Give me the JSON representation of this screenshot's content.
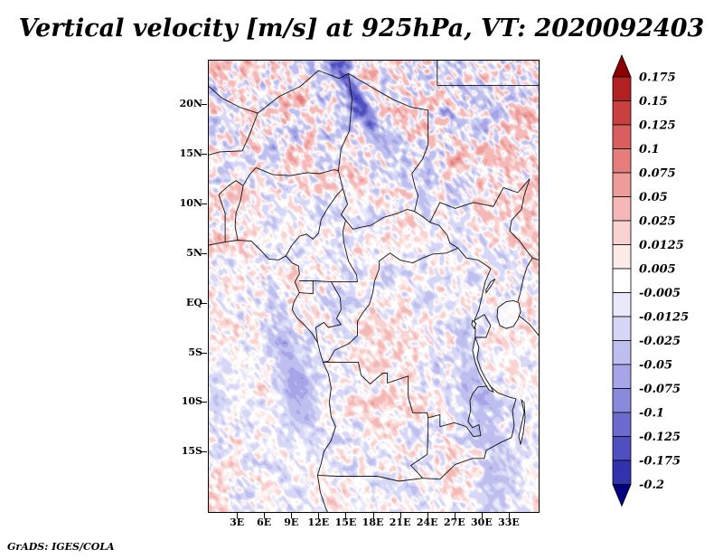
{
  "title": "Vertical velocity [m/s] at 925hPa, VT: 2020092403",
  "credit": "GrADS: IGES/COLA",
  "chart_data": {
    "type": "heatmap",
    "title": "Vertical velocity [m/s] at 925hPa, VT: 2020092403",
    "variable": "Vertical velocity",
    "units": "m/s",
    "pressure_level": "925hPa",
    "valid_time": "2020092403",
    "region": "Central Africa, approx 0E-36E and 21S-24.5N",
    "grid": false,
    "x": {
      "ticks": [
        "3E",
        "6E",
        "9E",
        "12E",
        "15E",
        "18E",
        "21E",
        "24E",
        "27E",
        "30E",
        "33E"
      ],
      "lons": [
        3,
        6,
        9,
        12,
        15,
        18,
        21,
        24,
        27,
        30,
        33
      ],
      "range_deg_east": [
        -0.2,
        36.2
      ]
    },
    "y": {
      "ticks": [
        "20N",
        "15N",
        "10N",
        "5N",
        "EQ",
        "5S",
        "10S",
        "15S"
      ],
      "lats": [
        20,
        15,
        10,
        5,
        0,
        -5,
        -10,
        -15
      ],
      "range_deg_north": [
        -21.0,
        24.5
      ]
    },
    "colorbar": {
      "position": "right",
      "orientation": "vertical",
      "arrow_top": true,
      "arrow_bottom": true,
      "tick_labels": [
        "0.175",
        "0.15",
        "0.125",
        "0.1",
        "0.075",
        "0.05",
        "0.025",
        "0.0125",
        "0.005",
        "-0.005",
        "-0.0125",
        "-0.025",
        "-0.05",
        "-0.075",
        "-0.1",
        "-0.125",
        "-0.175",
        "-0.2"
      ],
      "colors_top_to_bottom": [
        "#8b0000",
        "#b22222",
        "#c84040",
        "#d95f5f",
        "#e47d7c",
        "#ed9c9a",
        "#f4b9b7",
        "#f9d3d2",
        "#fdebea",
        "#ffffff",
        "#e9e9fb",
        "#d6d6f6",
        "#bfbfef",
        "#a5a5e7",
        "#8a8adc",
        "#6c6ccf",
        "#4f4fc0",
        "#3232ad",
        "#000080"
      ]
    },
    "field_summary": "Fine-grained mottled field of red (upward) and blue (downward) vertical velocity over central Africa; strongest filaments north of 10N, a dark blue streak near 17E/23N, bluish zones along the Gabon-Congo coast and the East African rift lakes; mostly near-white south of 5S. Values mostly within +/-0.1 m/s.",
    "frame_color": "#000000",
    "border_line_color": "#111111",
    "background_color": "#ffffff",
    "map_borders": [
      [
        [
          -0.2,
          5.9
        ],
        [
          1.5,
          6.2
        ],
        [
          3.0,
          6.4
        ],
        [
          4.5,
          6.3
        ],
        [
          5.5,
          5.4
        ],
        [
          6.4,
          4.5
        ],
        [
          7.5,
          4.4
        ],
        [
          8.3,
          4.8
        ],
        [
          9.0,
          4.1
        ],
        [
          9.7,
          3.8
        ],
        [
          9.8,
          3.0
        ],
        [
          9.3,
          2.2
        ],
        [
          9.8,
          1.1
        ],
        [
          9.2,
          0.2
        ],
        [
          9.0,
          -0.6
        ],
        [
          9.5,
          -1.4
        ],
        [
          10.4,
          -2.2
        ],
        [
          11.2,
          -3.0
        ],
        [
          11.8,
          -3.9
        ],
        [
          12.1,
          -5.0
        ],
        [
          12.4,
          -5.9
        ],
        [
          13.0,
          -7.1
        ],
        [
          13.3,
          -8.5
        ],
        [
          13.1,
          -9.9
        ],
        [
          13.3,
          -11.4
        ],
        [
          13.8,
          -12.4
        ],
        [
          13.3,
          -13.8
        ],
        [
          12.5,
          -14.9
        ],
        [
          12.2,
          -16.1
        ],
        [
          11.8,
          -17.3
        ],
        [
          12.1,
          -19.0
        ],
        [
          12.7,
          -20.6
        ],
        [
          12.9,
          -21.0
        ]
      ],
      [
        [
          -0.2,
          21.9
        ],
        [
          1.3,
          20.7
        ],
        [
          3.2,
          19.8
        ],
        [
          5.2,
          19.2
        ],
        [
          7.6,
          20.9
        ],
        [
          9.9,
          21.9
        ],
        [
          11.9,
          23.5
        ]
      ],
      [
        [
          11.9,
          23.5
        ],
        [
          14.2,
          22.7
        ],
        [
          15.2,
          23.2
        ],
        [
          17.6,
          21.9
        ],
        [
          20.1,
          20.6
        ],
        [
          22.1,
          19.8
        ],
        [
          24.0,
          19.5
        ]
      ],
      [
        [
          25.0,
          22.0
        ],
        [
          30.0,
          22.0
        ],
        [
          36.2,
          22.0
        ]
      ],
      [
        [
          25.0,
          24.5
        ],
        [
          25.0,
          22.0
        ]
      ],
      [
        [
          24.0,
          19.5
        ],
        [
          24.0,
          16.0
        ],
        [
          23.4,
          14.6
        ],
        [
          22.2,
          13.1
        ],
        [
          22.6,
          11.6
        ],
        [
          22.9,
          10.9
        ],
        [
          22.5,
          9.3
        ]
      ],
      [
        [
          15.2,
          23.2
        ],
        [
          15.6,
          20.6
        ],
        [
          15.3,
          17.4
        ],
        [
          14.4,
          15.6
        ],
        [
          14.1,
          13.4
        ]
      ],
      [
        [
          -0.2,
          15.0
        ],
        [
          1.0,
          15.3
        ],
        [
          3.5,
          15.4
        ],
        [
          4.2,
          16.8
        ],
        [
          5.2,
          19.2
        ]
      ],
      [
        [
          0.9,
          11.0
        ],
        [
          2.0,
          11.9
        ],
        [
          2.8,
          12.4
        ],
        [
          3.6,
          11.9
        ]
      ],
      [
        [
          1.6,
          6.2
        ],
        [
          1.6,
          9.1
        ],
        [
          0.9,
          11.0
        ]
      ],
      [
        [
          3.6,
          11.9
        ],
        [
          4.3,
          13.0
        ],
        [
          5.0,
          13.7
        ],
        [
          6.9,
          13.0
        ],
        [
          8.8,
          12.9
        ],
        [
          10.6,
          13.2
        ],
        [
          12.0,
          13.1
        ],
        [
          13.6,
          13.5
        ],
        [
          14.1,
          13.4
        ]
      ],
      [
        [
          3.0,
          6.4
        ],
        [
          2.7,
          7.8
        ],
        [
          2.8,
          9.1
        ],
        [
          3.3,
          10.4
        ],
        [
          3.6,
          11.9
        ]
      ],
      [
        [
          8.3,
          4.8
        ],
        [
          8.9,
          5.8
        ],
        [
          9.8,
          6.8
        ],
        [
          10.6,
          7.0
        ],
        [
          11.3,
          6.5
        ],
        [
          11.9,
          7.1
        ],
        [
          12.2,
          8.5
        ],
        [
          12.9,
          9.6
        ],
        [
          13.9,
          10.9
        ],
        [
          14.6,
          11.6
        ],
        [
          14.1,
          13.4
        ]
      ],
      [
        [
          14.6,
          11.6
        ],
        [
          15.1,
          10.0
        ],
        [
          14.4,
          9.0
        ],
        [
          14.9,
          8.4
        ],
        [
          14.6,
          7.3
        ],
        [
          14.7,
          6.2
        ],
        [
          15.2,
          4.3
        ],
        [
          16.1,
          2.9
        ],
        [
          16.2,
          2.2
        ]
      ],
      [
        [
          9.8,
          2.3
        ],
        [
          11.4,
          2.3
        ],
        [
          13.3,
          2.2
        ],
        [
          16.2,
          2.2
        ]
      ],
      [
        [
          9.8,
          1.1
        ],
        [
          11.3,
          1.0
        ],
        [
          11.3,
          2.3
        ]
      ],
      [
        [
          13.3,
          2.2
        ],
        [
          14.3,
          0.6
        ],
        [
          14.4,
          -0.6
        ],
        [
          13.9,
          -1.5
        ],
        [
          14.4,
          -2.1
        ],
        [
          13.0,
          -2.4
        ],
        [
          12.5,
          -1.9
        ],
        [
          11.6,
          -2.4
        ],
        [
          11.8,
          -3.9
        ]
      ],
      [
        [
          14.4,
          9.0
        ],
        [
          15.7,
          7.5
        ],
        [
          16.6,
          7.7
        ],
        [
          17.7,
          7.9
        ],
        [
          19.1,
          8.7
        ],
        [
          20.6,
          9.1
        ],
        [
          21.7,
          9.5
        ],
        [
          22.5,
          9.3
        ]
      ],
      [
        [
          22.5,
          9.3
        ],
        [
          23.5,
          8.7
        ],
        [
          24.2,
          8.2
        ],
        [
          25.2,
          7.9
        ],
        [
          26.1,
          6.9
        ],
        [
          26.4,
          6.1
        ],
        [
          27.3,
          5.6
        ]
      ],
      [
        [
          27.3,
          5.6
        ],
        [
          26.0,
          5.1
        ],
        [
          24.5,
          5.0
        ],
        [
          23.4,
          4.6
        ],
        [
          22.3,
          4.1
        ],
        [
          20.9,
          4.4
        ],
        [
          19.8,
          5.1
        ],
        [
          18.6,
          4.3
        ],
        [
          18.6,
          3.5
        ],
        [
          18.1,
          2.3
        ],
        [
          17.9,
          1.1
        ],
        [
          17.5,
          -0.1
        ],
        [
          16.8,
          -0.9
        ],
        [
          16.2,
          -1.8
        ],
        [
          16.2,
          -3.2
        ],
        [
          15.3,
          -4.0
        ],
        [
          14.4,
          -4.4
        ],
        [
          13.7,
          -4.7
        ],
        [
          13.0,
          -5.8
        ],
        [
          12.4,
          -5.9
        ]
      ],
      [
        [
          27.3,
          5.6
        ],
        [
          28.2,
          4.6
        ],
        [
          29.5,
          4.4
        ],
        [
          30.5,
          3.8
        ],
        [
          30.9,
          3.5
        ]
      ],
      [
        [
          30.9,
          3.5
        ],
        [
          30.3,
          2.2
        ],
        [
          29.9,
          0.6
        ],
        [
          29.6,
          -0.6
        ],
        [
          29.1,
          -1.7
        ],
        [
          29.2,
          -2.6
        ],
        [
          29.2,
          -3.4
        ]
      ],
      [
        [
          24.2,
          8.2
        ],
        [
          25.3,
          10.2
        ],
        [
          27.0,
          9.6
        ],
        [
          29.0,
          10.2
        ],
        [
          31.2,
          9.8
        ],
        [
          32.3,
          11.7
        ],
        [
          33.9,
          11.2
        ],
        [
          35.2,
          12.6
        ]
      ],
      [
        [
          35.2,
          12.6
        ],
        [
          34.6,
          10.9
        ],
        [
          34.3,
          9.5
        ],
        [
          33.2,
          8.4
        ],
        [
          33.0,
          7.3
        ],
        [
          34.1,
          6.3
        ],
        [
          34.9,
          5.3
        ],
        [
          35.5,
          4.6
        ]
      ],
      [
        [
          35.5,
          4.6
        ],
        [
          34.9,
          3.7
        ],
        [
          34.5,
          2.5
        ],
        [
          34.2,
          1.2
        ],
        [
          33.9,
          0.2
        ]
      ],
      [
        [
          35.5,
          4.6
        ],
        [
          36.2,
          4.4
        ]
      ],
      [
        [
          29.1,
          -1.7
        ],
        [
          30.2,
          -1.1
        ],
        [
          30.9,
          -2.2
        ],
        [
          30.4,
          -3.4
        ],
        [
          29.2,
          -3.4
        ]
      ],
      [
        [
          34.0,
          -1.2
        ],
        [
          35.2,
          -2.1
        ],
        [
          36.2,
          -3.2
        ]
      ],
      [
        [
          12.4,
          -5.9
        ],
        [
          13.1,
          -5.9
        ],
        [
          14.5,
          -5.9
        ],
        [
          16.3,
          -5.9
        ],
        [
          16.6,
          -7.2
        ],
        [
          17.6,
          -8.1
        ],
        [
          19.0,
          -7.0
        ],
        [
          19.5,
          -7.0
        ],
        [
          19.5,
          -8.0
        ],
        [
          21.8,
          -7.3
        ],
        [
          21.8,
          -9.4
        ],
        [
          22.3,
          -11.0
        ],
        [
          23.9,
          -11.0
        ],
        [
          24.0,
          -11.5
        ],
        [
          24.0,
          -12.9
        ]
      ],
      [
        [
          24.0,
          -12.9
        ],
        [
          23.9,
          -15.2
        ],
        [
          22.1,
          -16.3
        ],
        [
          23.4,
          -17.6
        ]
      ],
      [
        [
          11.8,
          -17.3
        ],
        [
          13.9,
          -17.4
        ],
        [
          18.4,
          -17.4
        ],
        [
          20.8,
          -17.9
        ],
        [
          23.4,
          -17.6
        ]
      ],
      [
        [
          23.4,
          -17.6
        ],
        [
          25.3,
          -17.7
        ],
        [
          27.0,
          -16.2
        ],
        [
          28.9,
          -15.6
        ],
        [
          30.2,
          -15.6
        ],
        [
          30.4,
          -14.8
        ]
      ],
      [
        [
          24.0,
          -11.5
        ],
        [
          25.3,
          -11.2
        ],
        [
          25.3,
          -12.4
        ],
        [
          26.9,
          -12.0
        ],
        [
          28.2,
          -12.4
        ],
        [
          29.0,
          -13.4
        ],
        [
          29.8,
          -13.3
        ],
        [
          29.6,
          -12.2
        ],
        [
          28.9,
          -12.5
        ],
        [
          28.4,
          -11.9
        ],
        [
          28.7,
          -10.7
        ],
        [
          28.6,
          -9.8
        ],
        [
          28.9,
          -9.1
        ],
        [
          29.5,
          -8.4
        ],
        [
          30.8,
          -8.3
        ]
      ],
      [
        [
          30.8,
          -8.3
        ],
        [
          31.7,
          -9.0
        ],
        [
          32.9,
          -9.4
        ],
        [
          33.7,
          -9.6
        ],
        [
          33.3,
          -10.8
        ],
        [
          33.5,
          -12.3
        ],
        [
          33.2,
          -13.5
        ],
        [
          32.0,
          -14.0
        ],
        [
          30.4,
          -14.8
        ]
      ]
    ],
    "lakes": [
      [
        [
          31.7,
          -0.4
        ],
        [
          32.6,
          0.2
        ],
        [
          33.4,
          0.3
        ],
        [
          34.0,
          0.1
        ],
        [
          34.2,
          -0.8
        ],
        [
          33.9,
          -1.6
        ],
        [
          33.4,
          -2.3
        ],
        [
          32.6,
          -2.5
        ],
        [
          31.9,
          -2.2
        ],
        [
          31.6,
          -1.3
        ]
      ],
      [
        [
          29.2,
          -3.4
        ],
        [
          29.6,
          -4.4
        ],
        [
          29.4,
          -5.5
        ],
        [
          29.8,
          -6.6
        ],
        [
          30.3,
          -7.5
        ],
        [
          31.0,
          -8.5
        ],
        [
          31.2,
          -8.9
        ],
        [
          30.7,
          -8.7
        ],
        [
          30.1,
          -7.8
        ],
        [
          29.6,
          -6.9
        ],
        [
          29.2,
          -5.9
        ],
        [
          28.9,
          -4.7
        ]
      ],
      [
        [
          30.4,
          1.1
        ],
        [
          31.1,
          2.0
        ],
        [
          31.4,
          2.5
        ],
        [
          30.9,
          2.2
        ],
        [
          30.4,
          1.4
        ]
      ],
      [
        [
          28.9,
          -1.7
        ],
        [
          29.3,
          -2.0
        ],
        [
          29.1,
          -2.5
        ],
        [
          28.8,
          -2.1
        ]
      ],
      [
        [
          34.3,
          -9.7
        ],
        [
          34.6,
          -11.0
        ],
        [
          34.3,
          -12.2
        ],
        [
          34.0,
          -13.4
        ],
        [
          34.2,
          -14.2
        ],
        [
          34.5,
          -13.0
        ],
        [
          34.7,
          -11.5
        ],
        [
          34.6,
          -10.0
        ]
      ]
    ]
  }
}
